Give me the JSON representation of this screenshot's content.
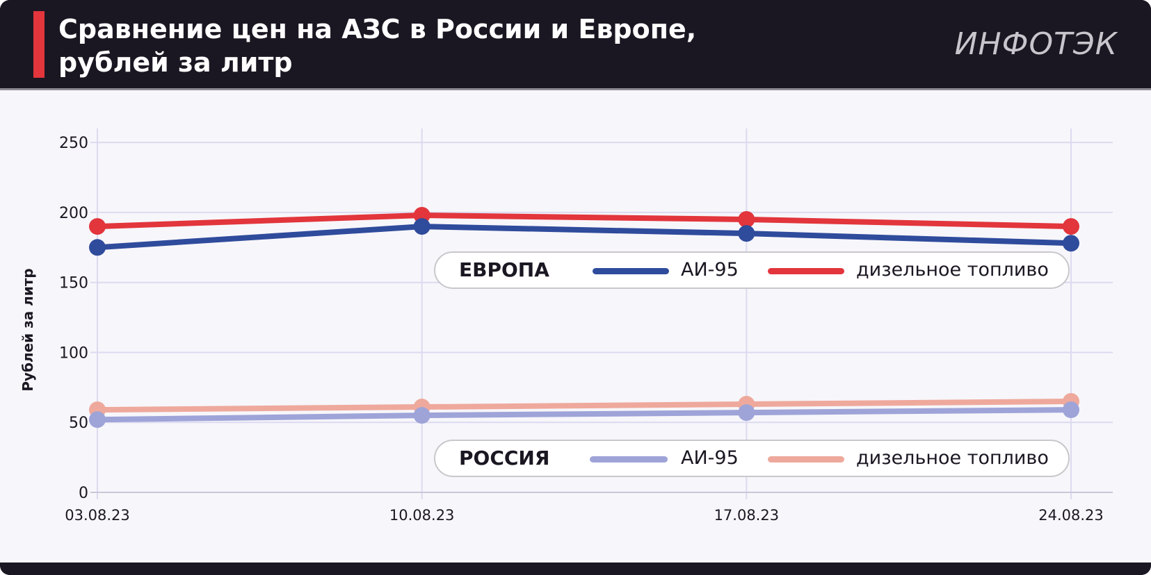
{
  "header": {
    "title_line1": "Сравнение цен на АЗС в России и Европе,",
    "title_line2": "рублей за литр",
    "logo": "ИНФОТЭК"
  },
  "colors": {
    "europe_ai95": "#2f4b9c",
    "europe_diesel": "#e2353c",
    "russia_ai95": "#9ea4d8",
    "russia_diesel": "#eea99c",
    "accent": "#e2353c",
    "header_bg": "#1b1722",
    "grid": "#dcdaf0"
  },
  "legends": {
    "europe": {
      "region": "ЕВРОПА",
      "ai95": "АИ-95",
      "diesel": "дизельное топливо"
    },
    "russia": {
      "region": "РОССИЯ",
      "ai95": "АИ-95",
      "diesel": "дизельное топливо"
    }
  },
  "chart_data": {
    "type": "line",
    "title": "Сравнение цен на АЗС в России и Европе, рублей за литр",
    "xlabel": "",
    "ylabel": "Рублей за литр",
    "categories": [
      "03.08.23",
      "10.08.23",
      "17.08.23",
      "24.08.23"
    ],
    "ylim": [
      0,
      260
    ],
    "yticks": [
      0,
      50,
      100,
      150,
      200,
      250
    ],
    "grid": true,
    "series": [
      {
        "name": "ЕВРОПА дизельное топливо",
        "color_key": "europe_diesel",
        "values": [
          190,
          198,
          195,
          190
        ]
      },
      {
        "name": "ЕВРОПА АИ-95",
        "color_key": "europe_ai95",
        "values": [
          175,
          190,
          185,
          178
        ]
      },
      {
        "name": "РОССИЯ дизельное топливо",
        "color_key": "russia_diesel",
        "values": [
          59,
          61,
          63,
          65
        ]
      },
      {
        "name": "РОССИЯ АИ-95",
        "color_key": "russia_ai95",
        "values": [
          52,
          55,
          57,
          59
        ]
      }
    ]
  }
}
